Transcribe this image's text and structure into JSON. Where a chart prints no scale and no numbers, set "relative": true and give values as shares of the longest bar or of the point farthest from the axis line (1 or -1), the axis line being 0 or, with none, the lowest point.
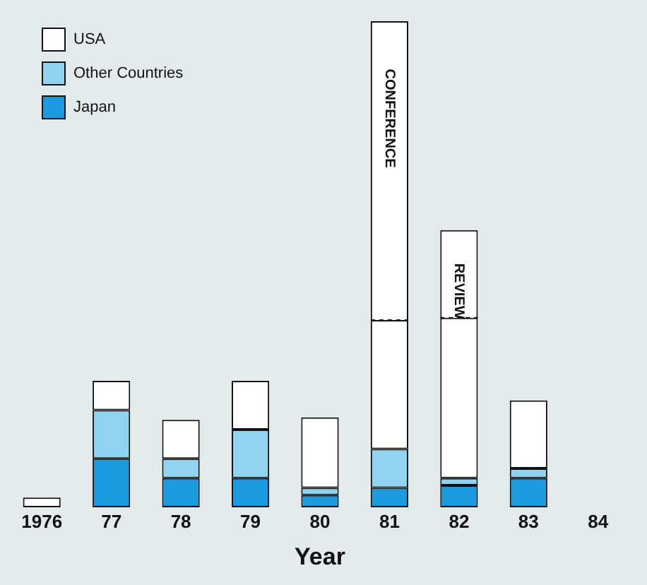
{
  "chart_data": {
    "type": "bar",
    "stacked": true,
    "relative": true,
    "xlabel": "Year",
    "legend": "top left",
    "grid": false,
    "categories": [
      "1976",
      "77",
      "78",
      "79",
      "80",
      "81",
      "82",
      "83",
      "84"
    ],
    "series": [
      {
        "name": "Japan",
        "color": "#1a9be0",
        "values": [
          0,
          0.1,
          0.06,
          0.06,
          0.025,
          0.04,
          0.045,
          0.06,
          null
        ]
      },
      {
        "name": "Other Countries",
        "color": "#8fd3f0",
        "values": [
          0,
          0.1,
          0.04,
          0.1,
          0.015,
          0.08,
          0.015,
          0.02,
          null
        ]
      },
      {
        "name": "USA",
        "color": "#ffffff",
        "values": [
          0.02,
          0.06,
          0.08,
          0.1,
          0.145,
          0.265,
          0.33,
          0.14,
          null
        ]
      },
      {
        "color": "#ffffff",
        "line_style": "dashed",
        "values": [
          null,
          null,
          null,
          null,
          null,
          0.615,
          0.18,
          null,
          null
        ]
      }
    ],
    "annotations": [
      "CONFERENCE",
      "REVIEW"
    ]
  }
}
